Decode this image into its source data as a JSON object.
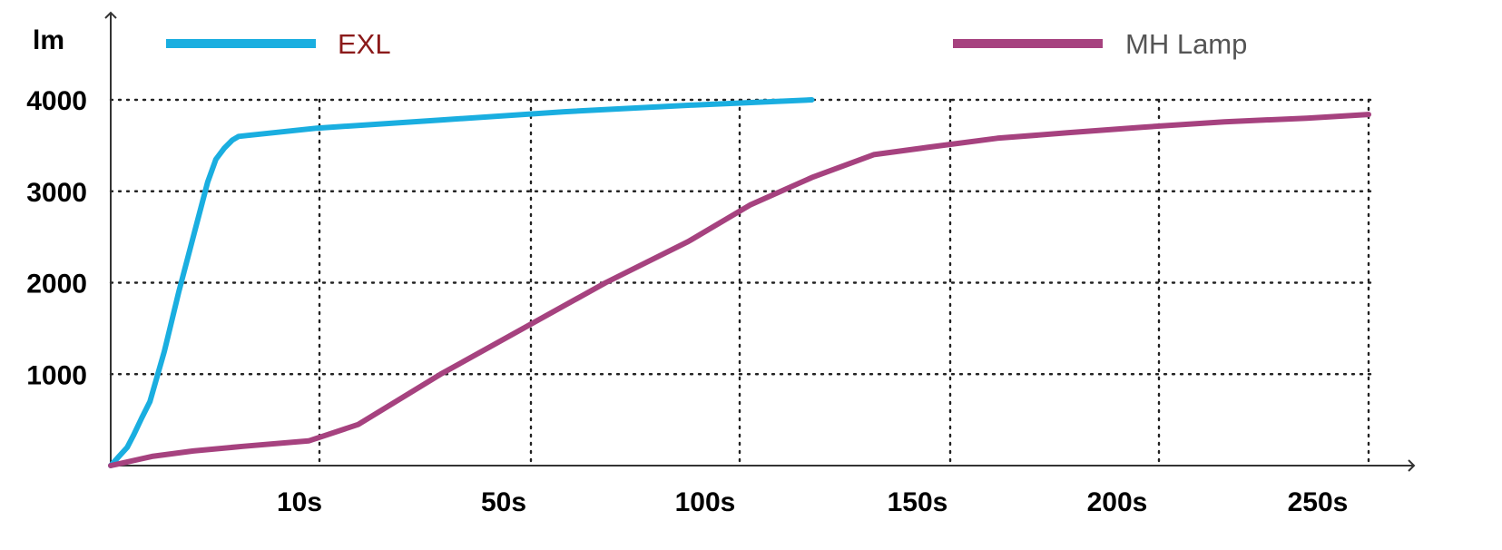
{
  "chart_data": {
    "type": "line",
    "title": "",
    "xlabel": "",
    "ylabel": "lm",
    "ylim": [
      0,
      4000
    ],
    "y_ticks": [
      "1000",
      "2000",
      "3000",
      "4000"
    ],
    "y_tick_values": [
      1000,
      2000,
      3000,
      4000
    ],
    "x_ticks": [
      "10s",
      "50s",
      "100s",
      "150s",
      "200s",
      "250s"
    ],
    "grid": true,
    "legend": "top",
    "series": [
      {
        "name": "EXL",
        "color": "#1aaee0",
        "label_color": "#8b1a1a",
        "points": [
          [
            0,
            0
          ],
          [
            0.2,
            100
          ],
          [
            0.4,
            200
          ],
          [
            0.55,
            330
          ],
          [
            0.75,
            520
          ],
          [
            0.95,
            700
          ],
          [
            1.3,
            1250
          ],
          [
            1.65,
            1900
          ],
          [
            2.0,
            2500
          ],
          [
            2.35,
            3100
          ],
          [
            2.55,
            3350
          ],
          [
            2.75,
            3470
          ],
          [
            2.95,
            3560
          ],
          [
            3.1,
            3600
          ],
          [
            3.3,
            3610
          ],
          [
            5,
            3690
          ],
          [
            8,
            3780
          ],
          [
            11,
            3870
          ],
          [
            14,
            3940
          ],
          [
            17,
            4000
          ]
        ]
      },
      {
        "name": "MH Lamp",
        "color": "#a6427f",
        "label_color": "#555555",
        "points": [
          [
            0,
            0
          ],
          [
            1,
            100
          ],
          [
            2,
            160
          ],
          [
            3.2,
            210
          ],
          [
            4.8,
            270
          ],
          [
            6,
            450
          ],
          [
            8,
            1000
          ],
          [
            10,
            1500
          ],
          [
            12,
            2000
          ],
          [
            14,
            2450
          ],
          [
            15.5,
            2850
          ],
          [
            17,
            3150
          ],
          [
            18.5,
            3400
          ],
          [
            19.8,
            3480
          ],
          [
            21.5,
            3580
          ],
          [
            23.2,
            3640
          ],
          [
            25,
            3700
          ],
          [
            27,
            3760
          ],
          [
            29,
            3800
          ],
          [
            30.5,
            3840
          ]
        ]
      }
    ]
  }
}
